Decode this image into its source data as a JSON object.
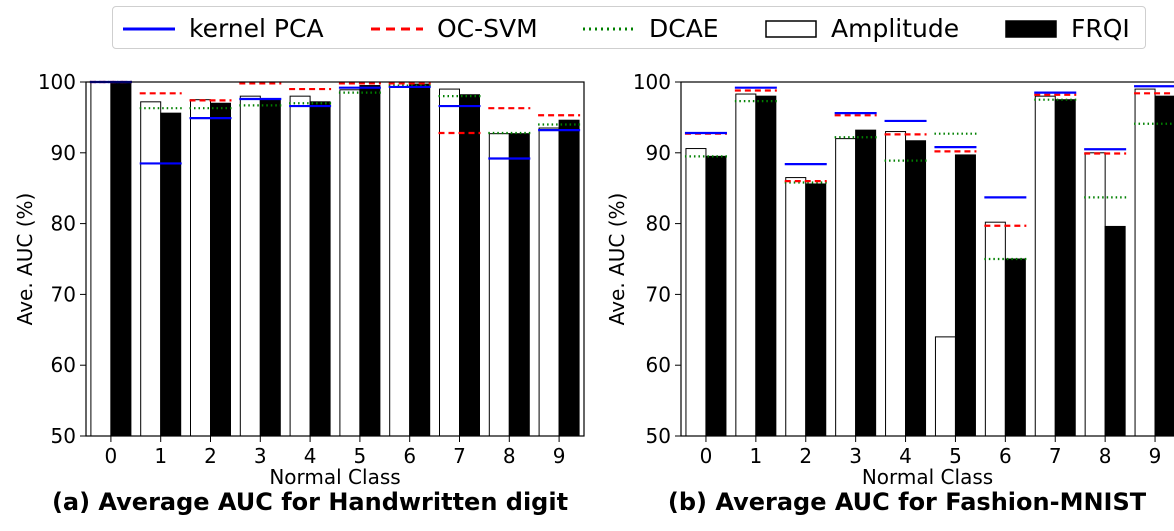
{
  "legend": {
    "kpca": "kernel PCA",
    "ocsvm": "OC-SVM",
    "dcae": "DCAE",
    "amplitude": "Amplitude",
    "frqi": "FRQI"
  },
  "colors": {
    "kpca": "#0000ff",
    "ocsvm": "#ff0000",
    "dcae": "#008000",
    "amplitude": "#ffffff",
    "frqi": "#000000"
  },
  "chart_data": [
    {
      "type": "bar",
      "caption": "(a) Average AUC for Handwritten digit",
      "xlabel": "Normal Class",
      "ylabel": "Ave. AUC (%)",
      "ylim": [
        50,
        100
      ],
      "yticks": [
        50,
        60,
        70,
        80,
        90,
        100
      ],
      "categories": [
        "0",
        "1",
        "2",
        "3",
        "4",
        "5",
        "6",
        "7",
        "8",
        "9"
      ],
      "series": [
        {
          "name": "Amplitude",
          "values": [
            100,
            97.2,
            97.5,
            98.0,
            98.0,
            98.9,
            100,
            99.0,
            92.7,
            93.5
          ]
        },
        {
          "name": "FRQI",
          "values": [
            100,
            95.6,
            97.0,
            97.5,
            97.2,
            99.5,
            99.7,
            98.2,
            92.7,
            94.6
          ]
        },
        {
          "name": "kernel PCA",
          "values": [
            100,
            88.5,
            94.9,
            97.6,
            96.6,
            99.2,
            99.3,
            96.6,
            89.2,
            93.2
          ]
        },
        {
          "name": "OC-SVM",
          "values": [
            100,
            98.4,
            97.4,
            99.8,
            99.0,
            99.8,
            99.8,
            92.8,
            96.3,
            95.3
          ]
        },
        {
          "name": "DCAE",
          "values": [
            100,
            96.3,
            96.3,
            96.7,
            97.0,
            98.5,
            99.5,
            98.0,
            92.8,
            94.0
          ]
        }
      ]
    },
    {
      "type": "bar",
      "caption": "(b) Average AUC for Fashion-MNIST",
      "xlabel": "Normal Class",
      "ylabel": "Ave. AUC (%)",
      "ylim": [
        50,
        100
      ],
      "yticks": [
        50,
        60,
        70,
        80,
        90,
        100
      ],
      "categories": [
        "0",
        "1",
        "2",
        "3",
        "4",
        "5",
        "6",
        "7",
        "8",
        "9"
      ],
      "series": [
        {
          "name": "Amplitude",
          "values": [
            90.6,
            98.3,
            86.5,
            92.0,
            93.0,
            64.0,
            80.2,
            98.0,
            90.0,
            99.0
          ]
        },
        {
          "name": "FRQI",
          "values": [
            89.5,
            98.0,
            85.6,
            93.2,
            91.7,
            89.7,
            75.0,
            97.5,
            79.6,
            98.0
          ]
        },
        {
          "name": "kernel PCA",
          "values": [
            92.8,
            99.2,
            88.4,
            95.6,
            94.5,
            90.8,
            83.7,
            98.5,
            90.5,
            99.4
          ]
        },
        {
          "name": "OC-SVM",
          "values": [
            92.7,
            98.8,
            86.0,
            95.3,
            92.6,
            90.2,
            79.7,
            98.2,
            89.9,
            98.4
          ]
        },
        {
          "name": "DCAE",
          "values": [
            89.5,
            97.3,
            85.8,
            92.2,
            88.9,
            92.7,
            75.0,
            97.5,
            83.7,
            94.1
          ]
        }
      ]
    }
  ]
}
